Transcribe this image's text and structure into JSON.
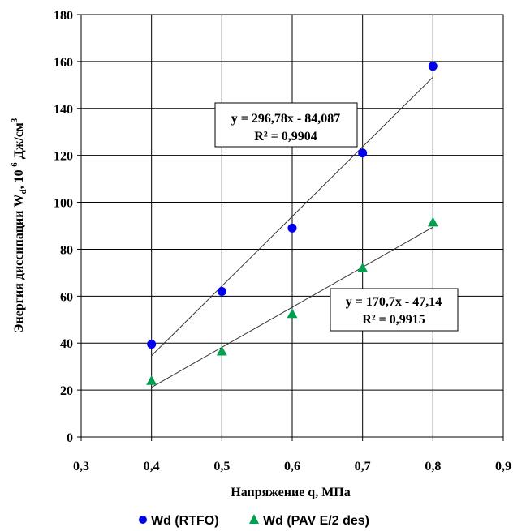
{
  "chart_data": {
    "type": "scatter",
    "xlabel": "Напряжение q, МПа",
    "ylabel": {
      "prefix": "Энергия диссипации  W",
      "sub": "d",
      "mid": ", 10",
      "sup": "-6",
      "suffix": "  Дж/см",
      "sup2": "3"
    },
    "xlim": [
      0.3,
      0.9
    ],
    "ylim": [
      0,
      180
    ],
    "x_ticks": [
      "0,3",
      "0,4",
      "0,5",
      "0,6",
      "0,7",
      "0,8",
      "0,9"
    ],
    "y_ticks": [
      "0",
      "20",
      "40",
      "60",
      "80",
      "100",
      "120",
      "140",
      "160",
      "180"
    ],
    "grid": true,
    "legend_position": "bottom",
    "series": [
      {
        "name": "Wd (RTFO)",
        "marker": "circle",
        "color": "#0000EE",
        "x": [
          0.4,
          0.5,
          0.6,
          0.7,
          0.8
        ],
        "y": [
          39.5,
          62,
          89,
          121,
          158
        ],
        "trendline": {
          "slope": 296.78,
          "intercept": -84.087,
          "equation": "y = 296,78x - 84,087",
          "r2": "R² = 0,9904"
        }
      },
      {
        "name": "Wd (PAV  E/2 des)",
        "marker": "triangle",
        "color": "#00A050",
        "x": [
          0.4,
          0.5,
          0.6,
          0.7,
          0.8
        ],
        "y": [
          24,
          36.5,
          52.5,
          72,
          91.5
        ],
        "trendline": {
          "slope": 170.7,
          "intercept": -47.14,
          "equation": "y = 170,7x - 47,14",
          "r2": "R² = 0,9915"
        }
      }
    ]
  }
}
